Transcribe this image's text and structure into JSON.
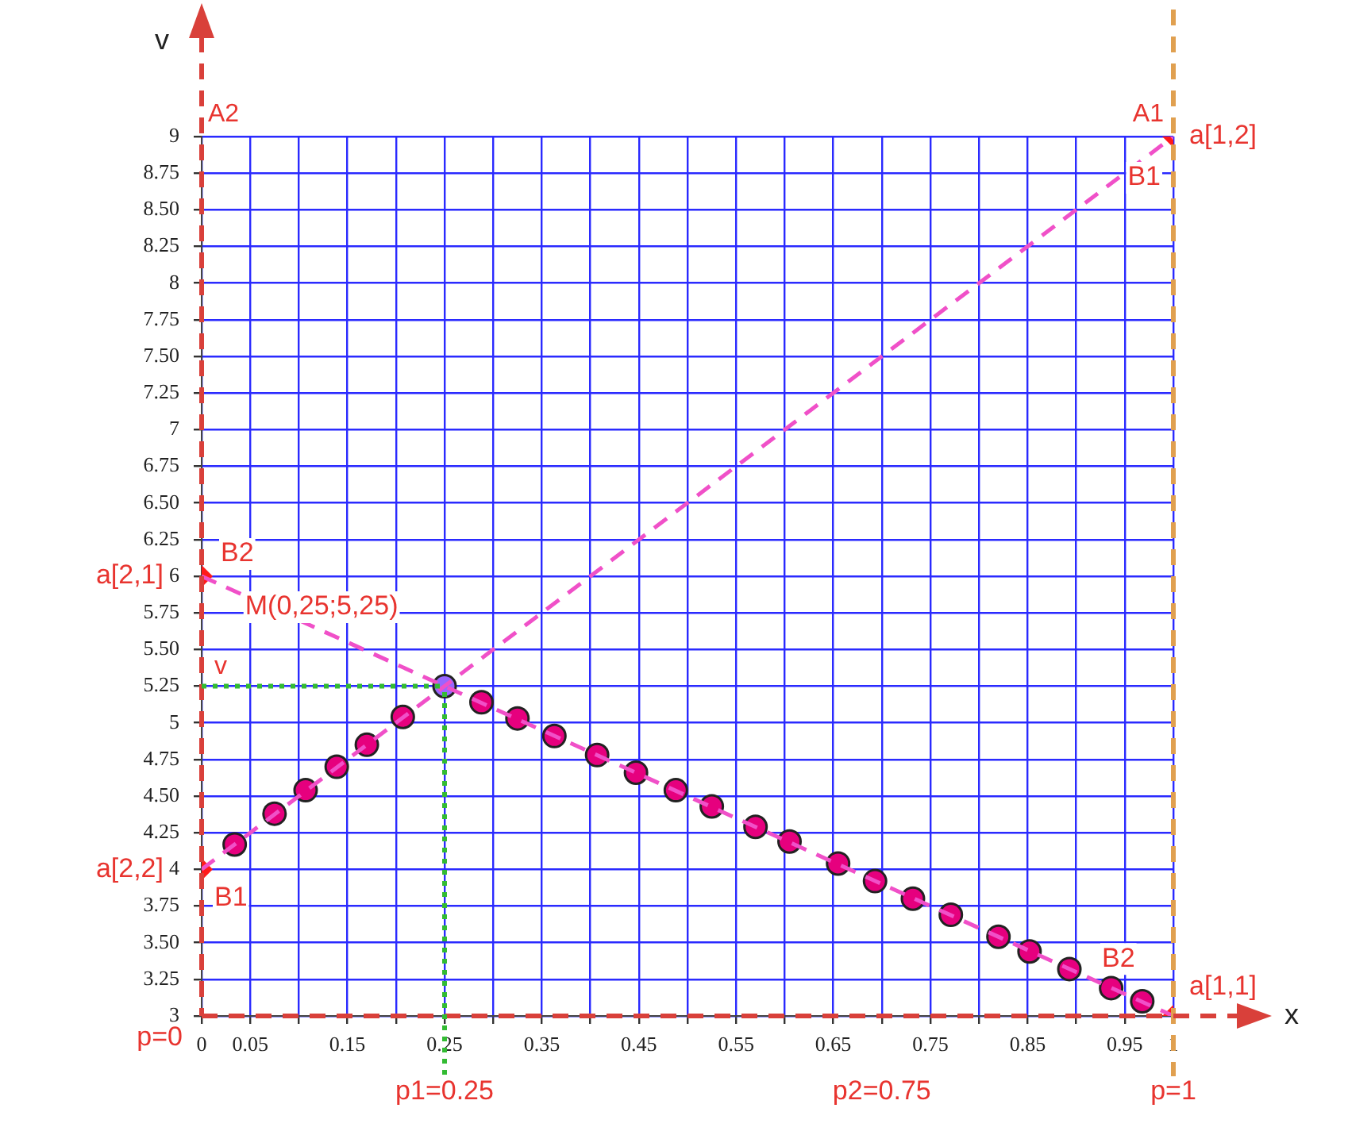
{
  "chart_data": {
    "type": "scatter",
    "xlabel": "x",
    "ylabel": "v",
    "xlim": [
      0,
      1
    ],
    "ylim": [
      3,
      9
    ],
    "xticks": [
      0,
      0.05,
      {
        "value": 0.1,
        "label": null
      },
      0.15,
      {
        "value": 0.2,
        "label": null
      },
      0.25,
      {
        "value": 0.3,
        "label": null
      },
      0.35,
      {
        "value": 0.4,
        "label": null
      },
      0.45,
      {
        "value": 0.5,
        "label": null
      },
      0.55,
      {
        "value": 0.6,
        "label": null
      },
      0.65,
      {
        "value": 0.7,
        "label": null
      },
      0.75,
      {
        "value": 0.8,
        "label": null
      },
      0.85,
      {
        "value": 0.9,
        "label": null
      },
      0.95,
      1
    ],
    "yticks": [
      3,
      3.25,
      {
        "value": 3.5,
        "label": "3.50"
      },
      3.75,
      4,
      4.25,
      {
        "value": 4.5,
        "label": "4.50"
      },
      4.75,
      5,
      5.25,
      {
        "value": 5.5,
        "label": "5.50"
      },
      5.75,
      6,
      6.25,
      {
        "value": 6.5,
        "label": "6.50"
      },
      6.75,
      7,
      7.25,
      {
        "value": 7.5,
        "label": "7.50"
      },
      7.75,
      8,
      8.25,
      {
        "value": 8.5,
        "label": "8.50"
      },
      8.75,
      9
    ],
    "grid": true,
    "legend": false,
    "series": [
      {
        "type": "line",
        "color": "#f050c8",
        "line_style": "dashed",
        "marker": "none",
        "x": [
          0,
          1
        ],
        "values": [
          4,
          9
        ]
      },
      {
        "type": "line",
        "color": "#f050c8",
        "line_style": "dashed",
        "marker": "none",
        "x": [
          0,
          1
        ],
        "values": [
          6,
          3
        ]
      },
      {
        "type": "scatter",
        "color": "#e6007e",
        "marker": "circle",
        "x": [
          0.034,
          0.075,
          0.107,
          0.139,
          0.17,
          0.207,
          0.288,
          0.325,
          0.363,
          0.407,
          0.447,
          0.488,
          0.525,
          0.57,
          0.605,
          0.655,
          0.693,
          0.732,
          0.771,
          0.82,
          0.852,
          0.893,
          0.936,
          0.968
        ],
        "values": [
          4.17,
          4.38,
          4.54,
          4.7,
          4.85,
          5.04,
          5.14,
          5.03,
          4.91,
          4.78,
          4.66,
          4.54,
          4.43,
          4.29,
          4.19,
          4.04,
          3.92,
          3.8,
          3.69,
          3.54,
          3.44,
          3.32,
          3.19,
          3.1
        ]
      },
      {
        "type": "scatter",
        "color": "#ff1a1a",
        "marker": "diamond",
        "x": [
          0,
          0,
          1,
          1
        ],
        "values": [
          4,
          6,
          9,
          3
        ]
      },
      {
        "type": "scatter",
        "color": "#9966ff",
        "marker": "circle",
        "x": [
          0.25
        ],
        "values": [
          5.25
        ]
      }
    ],
    "ref_lines": [
      {
        "axis": "x",
        "value": 0,
        "label": "A2",
        "color": "#d9403a",
        "line_style": "dashed"
      },
      {
        "axis": "x",
        "value": 1,
        "label": "A1",
        "color": "#e0a050",
        "line_style": "dashed"
      },
      {
        "axis": "y",
        "value": 3,
        "color": "#d9403a",
        "line_style": "dashed"
      },
      {
        "axis": "x",
        "value": 0.25,
        "color": "#33bb33",
        "line_style": "dotted"
      },
      {
        "axis": "y",
        "value": 5.25,
        "label": "v",
        "color": "#33bb33",
        "line_style": "dotted"
      }
    ],
    "annotations": [
      {
        "text": "a[1,2]",
        "x": 1,
        "y": 9
      },
      {
        "text": "B1",
        "x": 1,
        "y": 9
      },
      {
        "text": "a[2,1]",
        "x": 0,
        "y": 6
      },
      {
        "text": "B2",
        "x": 0,
        "y": 6
      },
      {
        "text": "M(0,25;5,25)",
        "x": 0.13,
        "y": 5.55
      },
      {
        "text": "a[2,2]",
        "x": 0,
        "y": 4
      },
      {
        "text": "B1",
        "x": 0,
        "y": 4
      },
      {
        "text": "B2",
        "x": 0.95,
        "y": 3.15
      },
      {
        "text": "a[1,1]",
        "x": 1,
        "y": 3
      },
      "p=0",
      {
        "text": "p1=0.25",
        "x": 0.25
      },
      "p2=0.75",
      {
        "text": "p=1",
        "x": 1
      }
    ]
  }
}
